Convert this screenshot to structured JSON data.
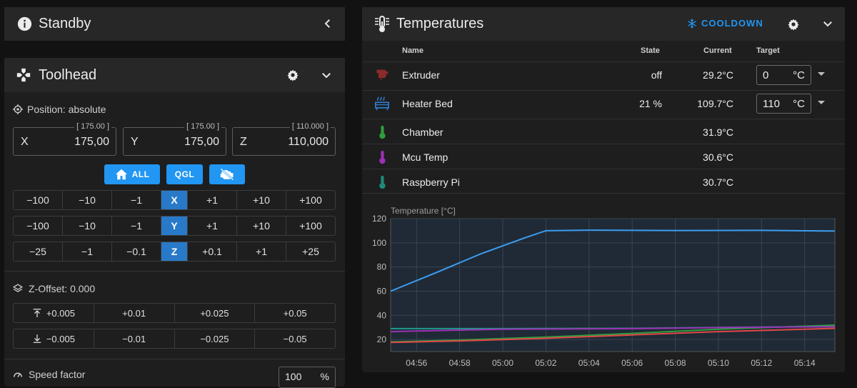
{
  "standby": {
    "title": "Standby",
    "icon": "info-icon"
  },
  "toolhead": {
    "title": "Toolhead",
    "position_label": "Position: absolute",
    "coords": [
      {
        "axis": "X",
        "value": "175,00",
        "target": "[ 175.00 ]"
      },
      {
        "axis": "Y",
        "value": "175,00",
        "target": "[ 175.00 ]"
      },
      {
        "axis": "Z",
        "value": "110,000",
        "target": "[ 110.000 ]"
      }
    ],
    "home_all_label": "ALL",
    "qgl_label": "QGL",
    "jog_x": [
      "−100",
      "−10",
      "−1",
      "X",
      "+1",
      "+10",
      "+100"
    ],
    "jog_y": [
      "−100",
      "−10",
      "−1",
      "Y",
      "+1",
      "+10",
      "+100"
    ],
    "jog_z": [
      "−25",
      "−1",
      "−0.1",
      "Z",
      "+0.1",
      "+1",
      "+25"
    ],
    "z_offset_label": "Z-Offset: 0.000",
    "zoff_up": [
      "+0.005",
      "+0.01",
      "+0.025",
      "+0.05"
    ],
    "zoff_down": [
      "−0.005",
      "−0.01",
      "−0.025",
      "−0.05"
    ],
    "speed_label": "Speed factor",
    "speed_value": "100",
    "speed_unit": "%"
  },
  "temperatures": {
    "title": "Temperatures",
    "cooldown_label": "COOLDOWN",
    "headers": {
      "name": "Name",
      "state": "State",
      "current": "Current",
      "target": "Target"
    },
    "rows": [
      {
        "name": "Extruder",
        "state": "off",
        "current": "29.2°C",
        "target": "0",
        "unit": "°C",
        "icon": "extruder-icon",
        "color": "#8b2b2b"
      },
      {
        "name": "Heater Bed",
        "state": "21 %",
        "current": "109.7°C",
        "target": "110",
        "unit": "°C",
        "icon": "heater-bed-icon",
        "color": "#2f7fd0"
      },
      {
        "name": "Chamber",
        "state": "",
        "current": "31.9°C",
        "icon": "thermometer-icon",
        "color": "#2e9e3e"
      },
      {
        "name": "Mcu Temp",
        "state": "",
        "current": "30.6°C",
        "icon": "thermometer-icon",
        "color": "#9c32b5"
      },
      {
        "name": "Raspberry Pi",
        "state": "",
        "current": "30.7°C",
        "icon": "thermometer-icon",
        "color": "#1f8a7a"
      }
    ]
  },
  "chart_data": {
    "type": "line",
    "ylabel": "Temperature [°C]",
    "ylim": [
      10,
      120
    ],
    "yticks": [
      20,
      40,
      60,
      80,
      100,
      120
    ],
    "xticks": [
      "04:56",
      "04:58",
      "05:00",
      "05:02",
      "05:04",
      "05:06",
      "05:08",
      "05:10",
      "05:12",
      "05:14"
    ],
    "xlim_minutes": [
      54.8,
      75.4
    ],
    "series": [
      {
        "color": "#3d9df0",
        "points": [
          [
            54.8,
            60
          ],
          [
            57,
            76
          ],
          [
            59,
            91
          ],
          [
            61,
            104
          ],
          [
            62,
            110
          ],
          [
            64,
            110.5
          ],
          [
            68,
            110.2
          ],
          [
            72,
            110.3
          ],
          [
            75.4,
            109.7
          ]
        ]
      },
      {
        "color": "#2e9e3e",
        "points": [
          [
            54.8,
            18
          ],
          [
            58,
            19.5
          ],
          [
            62,
            22
          ],
          [
            66,
            25
          ],
          [
            70,
            28.5
          ],
          [
            75.4,
            31.9
          ]
        ]
      },
      {
        "color": "#e04848",
        "points": [
          [
            54.8,
            17.5
          ],
          [
            58,
            18.8
          ],
          [
            62,
            21
          ],
          [
            66,
            23.8
          ],
          [
            70,
            26.5
          ],
          [
            75.4,
            29.2
          ]
        ]
      },
      {
        "color": "#1f9a8a",
        "points": [
          [
            54.8,
            29
          ],
          [
            60,
            29
          ],
          [
            66,
            29.2
          ],
          [
            70,
            30
          ],
          [
            75.4,
            30.7
          ]
        ]
      },
      {
        "color": "#9c32b5",
        "points": [
          [
            54.8,
            26.5
          ],
          [
            56,
            27
          ],
          [
            60,
            28.5
          ],
          [
            66,
            29
          ],
          [
            70,
            29.8
          ],
          [
            75.4,
            30.6
          ]
        ]
      }
    ]
  }
}
